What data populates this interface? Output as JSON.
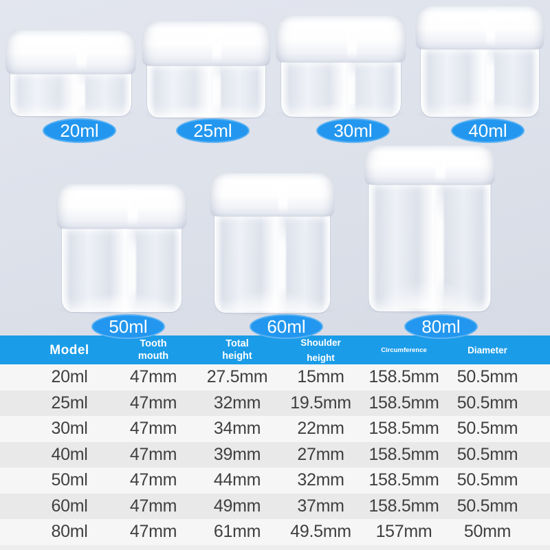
{
  "colors": {
    "badge_blue": "#2397ef",
    "header_blue": "#1b9ce8",
    "row_light": "#f6f6f6",
    "row_gray": "#e9e9e9",
    "stage_background": "#dee2eb",
    "data_text": "#3f3f3f"
  },
  "jars": [
    {
      "label": "20ml"
    },
    {
      "label": "25ml"
    },
    {
      "label": "30ml"
    },
    {
      "label": "40ml"
    },
    {
      "label": "50ml"
    },
    {
      "label": "60ml"
    },
    {
      "label": "80ml"
    }
  ],
  "table": {
    "headers": [
      "Model",
      "Tooth\nmouth",
      "Total\nheight",
      "Shoulder\nheight",
      "Circumference",
      "Diameter"
    ],
    "rows": [
      [
        "20ml",
        "47mm",
        "27.5mm",
        "15mm",
        "158.5mm",
        "50.5mm"
      ],
      [
        "25ml",
        "47mm",
        "32mm",
        "19.5mm",
        "158.5mm",
        "50.5mm"
      ],
      [
        "30ml",
        "47mm",
        "34mm",
        "22mm",
        "158.5mm",
        "50.5mm"
      ],
      [
        "40ml",
        "47mm",
        "39mm",
        "27mm",
        "158.5mm",
        "50.5mm"
      ],
      [
        "50ml",
        "47mm",
        "44mm",
        "32mm",
        "158.5mm",
        "50.5mm"
      ],
      [
        "60ml",
        "47mm",
        "49mm",
        "37mm",
        "158.5mm",
        "50.5mm"
      ],
      [
        "80ml",
        "47mm",
        "61mm",
        "49.5mm",
        "157mm",
        "50mm"
      ]
    ]
  }
}
